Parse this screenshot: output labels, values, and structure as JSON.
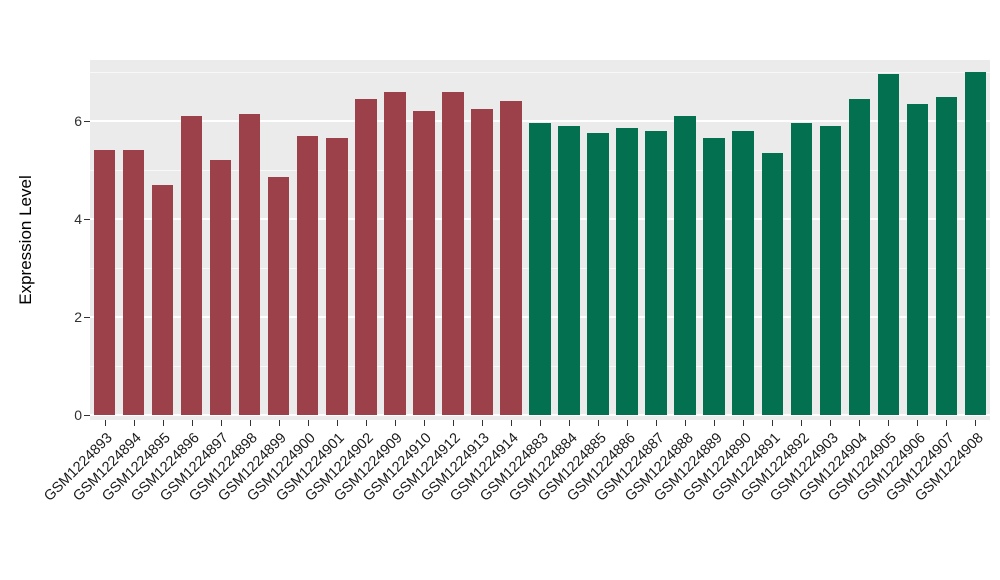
{
  "chart_data": {
    "type": "bar",
    "title": "",
    "xlabel": "",
    "ylabel": "Expression Level",
    "legend_position": "none",
    "grid": true,
    "panel_background": "#EBEBEB",
    "gridline_color": "#FFFFFF",
    "ylim": [
      0,
      7.3
    ],
    "yticks": [
      0,
      2,
      4,
      6
    ],
    "minor_gridlines": [
      1,
      3,
      5,
      7
    ],
    "categories": [
      "GSM1224893",
      "GSM1224894",
      "GSM1224895",
      "GSM1224896",
      "GSM1224897",
      "GSM1224898",
      "GSM1224899",
      "GSM1224900",
      "GSM1224901",
      "GSM1224902",
      "GSM1224909",
      "GSM1224910",
      "GSM1224912",
      "GSM1224913",
      "GSM1224914",
      "GSM1224883",
      "GSM1224884",
      "GSM1224885",
      "GSM1224886",
      "GSM1224887",
      "GSM1224888",
      "GSM1224889",
      "GSM1224890",
      "GSM1224891",
      "GSM1224892",
      "GSM1224903",
      "GSM1224904",
      "GSM1224905",
      "GSM1224906",
      "GSM1224907",
      "GSM1224908"
    ],
    "values": [
      5.4,
      5.4,
      4.7,
      6.1,
      5.2,
      6.15,
      4.85,
      5.7,
      5.65,
      6.45,
      6.6,
      6.2,
      6.6,
      6.25,
      6.4,
      5.95,
      5.9,
      5.75,
      5.85,
      5.8,
      6.1,
      5.65,
      5.8,
      5.35,
      5.95,
      5.9,
      6.45,
      6.95,
      6.35,
      6.5,
      7.0
    ],
    "groups": [
      "group1",
      "group1",
      "group1",
      "group1",
      "group1",
      "group1",
      "group1",
      "group1",
      "group1",
      "group1",
      "group1",
      "group1",
      "group1",
      "group1",
      "group1",
      "group2",
      "group2",
      "group2",
      "group2",
      "group2",
      "group2",
      "group2",
      "group2",
      "group2",
      "group2",
      "group2",
      "group2",
      "group2",
      "group2",
      "group2",
      "group2"
    ],
    "group_colors": {
      "group1": "#9C4149",
      "group2": "#03714F"
    }
  }
}
